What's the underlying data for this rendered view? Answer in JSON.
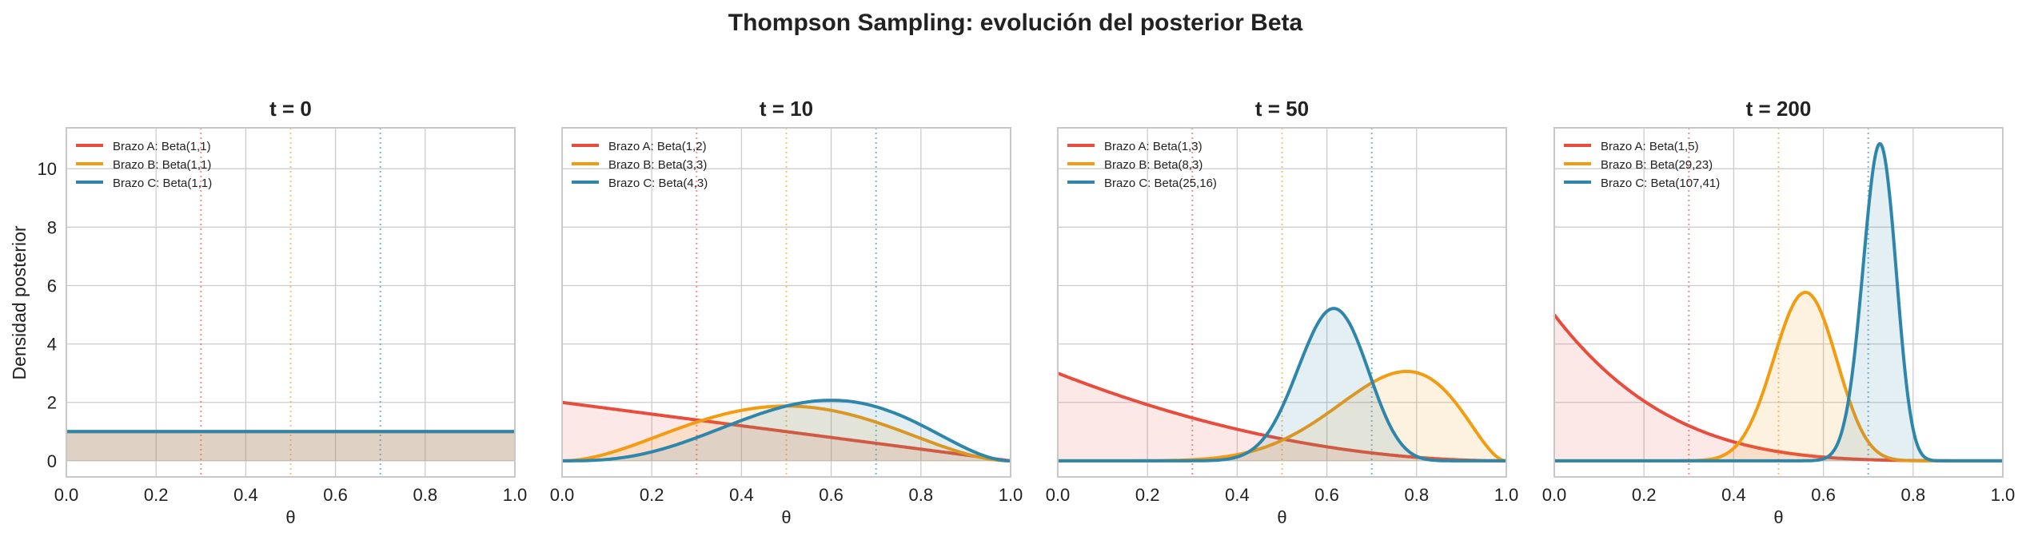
{
  "chart_data": {
    "type": "line",
    "title": "Thompson Sampling: evolución del posterior Beta",
    "ylabel": "Densidad posterior",
    "xlabel": "θ",
    "xlim": [
      0,
      1
    ],
    "ylim": [
      -0.55,
      11.4
    ],
    "xticks": [
      "0.0",
      "0.2",
      "0.4",
      "0.6",
      "0.8",
      "1.0"
    ],
    "yticks": [
      "0",
      "2",
      "4",
      "6",
      "8",
      "10"
    ],
    "grid": true,
    "legend_position": "top-left",
    "true_rates": [
      {
        "arm": "A",
        "value": 0.3,
        "color": "#e74c3c"
      },
      {
        "arm": "B",
        "value": 0.5,
        "color": "#f39c12"
      },
      {
        "arm": "C",
        "value": 0.7,
        "color": "#2e86ab"
      }
    ],
    "panels": [
      {
        "title": "t = 0",
        "series": [
          {
            "name": "Brazo A: Beta(1,1)",
            "alpha": 1,
            "beta": 1,
            "color": "#e74c3c"
          },
          {
            "name": "Brazo B: Beta(1,1)",
            "alpha": 1,
            "beta": 1,
            "color": "#f39c12"
          },
          {
            "name": "Brazo C: Beta(1,1)",
            "alpha": 1,
            "beta": 1,
            "color": "#2e86ab"
          }
        ]
      },
      {
        "title": "t = 10",
        "series": [
          {
            "name": "Brazo A: Beta(1,2)",
            "alpha": 1,
            "beta": 2,
            "color": "#e74c3c"
          },
          {
            "name": "Brazo B: Beta(3,3)",
            "alpha": 3,
            "beta": 3,
            "color": "#f39c12"
          },
          {
            "name": "Brazo C: Beta(4,3)",
            "alpha": 4,
            "beta": 3,
            "color": "#2e86ab"
          }
        ]
      },
      {
        "title": "t = 50",
        "series": [
          {
            "name": "Brazo A: Beta(1,3)",
            "alpha": 1,
            "beta": 3,
            "color": "#e74c3c"
          },
          {
            "name": "Brazo B: Beta(8,3)",
            "alpha": 8,
            "beta": 3,
            "color": "#f39c12"
          },
          {
            "name": "Brazo C: Beta(25,16)",
            "alpha": 25,
            "beta": 16,
            "color": "#2e86ab"
          }
        ]
      },
      {
        "title": "t = 200",
        "series": [
          {
            "name": "Brazo A: Beta(1,5)",
            "alpha": 1,
            "beta": 5,
            "color": "#e74c3c"
          },
          {
            "name": "Brazo B: Beta(29,23)",
            "alpha": 29,
            "beta": 23,
            "color": "#f39c12"
          },
          {
            "name": "Brazo C: Beta(107,41)",
            "alpha": 107,
            "beta": 41,
            "color": "#2e86ab"
          }
        ]
      }
    ]
  }
}
